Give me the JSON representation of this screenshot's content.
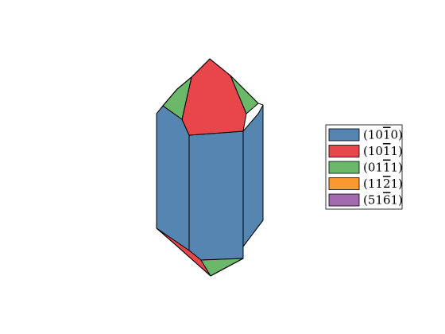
{
  "colors": {
    "prism": "#5586b1",
    "rhomb_pos": "#e8464b",
    "rhomb_neg": "#6cb86a",
    "trapezohedron": "#fb982f",
    "scalenohedron": "#a46ab0"
  },
  "legend": {
    "items": [
      {
        "name": "(1010)",
        "indices": [
          "1",
          "0",
          "1",
          "0"
        ],
        "bar": [
          false,
          false,
          true,
          false
        ],
        "color": "#5586b1"
      },
      {
        "name": "(1011)",
        "indices": [
          "1",
          "0",
          "1",
          "1"
        ],
        "bar": [
          false,
          false,
          true,
          false
        ],
        "color": "#e8464b"
      },
      {
        "name": "(0111)",
        "indices": [
          "0",
          "1",
          "1",
          "1"
        ],
        "bar": [
          false,
          false,
          true,
          false
        ],
        "color": "#6cb86a"
      },
      {
        "name": "(1121)",
        "indices": [
          "1",
          "1",
          "2",
          "1"
        ],
        "bar": [
          false,
          false,
          true,
          false
        ],
        "color": "#fb982f"
      },
      {
        "name": "(5161)",
        "indices": [
          "5",
          "1",
          "6",
          "1"
        ],
        "bar": [
          false,
          false,
          true,
          false
        ],
        "color": "#a46ab0"
      }
    ]
  }
}
